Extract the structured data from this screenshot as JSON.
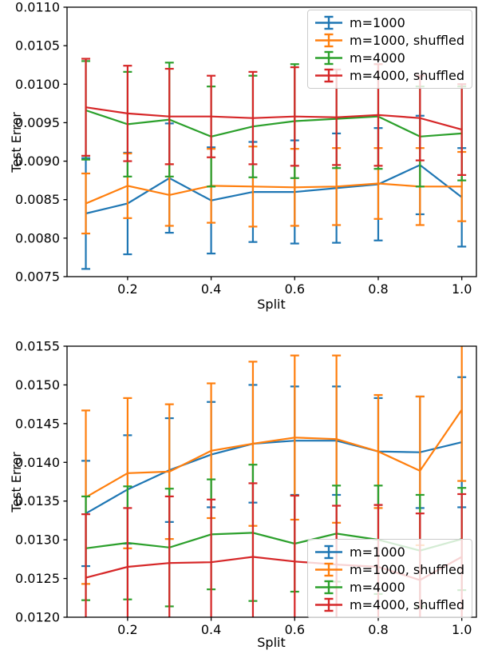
{
  "page": {
    "background": "#ffffff"
  },
  "colors": {
    "blue": "#1f77b4",
    "orange": "#ff7f0e",
    "green": "#2ca02c",
    "red": "#d62728",
    "axis": "#000000"
  },
  "chart_data": [
    {
      "type": "line",
      "title": "",
      "xlabel": "Split",
      "ylabel": "Test Error",
      "x": [
        0.1,
        0.2,
        0.3,
        0.4,
        0.5,
        0.6,
        0.7,
        0.8,
        0.9,
        1.0
      ],
      "xlim": [
        0.055,
        1.035
      ],
      "ylim": [
        0.0075,
        0.011
      ],
      "xticks": {
        "values": [
          0.2,
          0.4,
          0.6,
          0.8,
          1.0
        ],
        "labels": [
          "0.2",
          "0.4",
          "0.6",
          "0.8",
          "1.0"
        ]
      },
      "yticks": {
        "values": [
          0.0075,
          0.008,
          0.0085,
          0.009,
          0.0095,
          0.01,
          0.0105,
          0.011
        ],
        "labels": [
          "0.0075",
          "0.0080",
          "0.0085",
          "0.0090",
          "0.0095",
          "0.0100",
          "0.0105",
          "0.0110"
        ]
      },
      "grid": false,
      "legend_position": "upper right",
      "series": [
        {
          "name": "m=1000",
          "color": "#1f77b4",
          "values": [
            0.00832,
            0.00845,
            0.00878,
            0.00849,
            0.0086,
            0.0086,
            0.00865,
            0.0087,
            0.00895,
            0.00853
          ],
          "errors": [
            0.00072,
            0.00066,
            0.00071,
            0.00069,
            0.00065,
            0.00067,
            0.00071,
            0.00073,
            0.00064,
            0.00064
          ]
        },
        {
          "name": "m=1000, shuffled",
          "color": "#ff7f0e",
          "values": [
            0.00845,
            0.00868,
            0.00856,
            0.00868,
            0.00867,
            0.00866,
            0.00867,
            0.00871,
            0.00867,
            0.00867
          ],
          "errors": [
            0.00039,
            0.00042,
            0.0004,
            0.00048,
            0.00052,
            0.0005,
            0.0005,
            0.00046,
            0.0005,
            0.00045
          ]
        },
        {
          "name": "m=4000",
          "color": "#2ca02c",
          "values": [
            0.00966,
            0.00948,
            0.00954,
            0.00932,
            0.00945,
            0.00952,
            0.00955,
            0.00958,
            0.00932,
            0.00936
          ],
          "errors": [
            0.00064,
            0.00068,
            0.00074,
            0.00065,
            0.00066,
            0.00074,
            0.00064,
            0.00068,
            0.00065,
            0.00061
          ]
        },
        {
          "name": "m=4000, shuffled",
          "color": "#d62728",
          "values": [
            0.0097,
            0.00962,
            0.00958,
            0.00958,
            0.00956,
            0.00958,
            0.00957,
            0.0096,
            0.00956,
            0.00941
          ],
          "errors": [
            0.00063,
            0.00062,
            0.00062,
            0.00053,
            0.0006,
            0.00064,
            0.00062,
            0.00066,
            0.00055,
            0.00059
          ]
        }
      ]
    },
    {
      "type": "line",
      "title": "",
      "xlabel": "Split",
      "ylabel": "Test Error",
      "x": [
        0.1,
        0.2,
        0.3,
        0.4,
        0.5,
        0.6,
        0.7,
        0.8,
        0.9,
        1.0
      ],
      "xlim": [
        0.055,
        1.035
      ],
      "ylim": [
        0.012,
        0.0155
      ],
      "xticks": {
        "values": [
          0.2,
          0.4,
          0.6,
          0.8,
          1.0
        ],
        "labels": [
          "0.2",
          "0.4",
          "0.6",
          "0.8",
          "1.0"
        ]
      },
      "yticks": {
        "values": [
          0.012,
          0.0125,
          0.013,
          0.0135,
          0.014,
          0.0145,
          0.015,
          0.0155
        ],
        "labels": [
          "0.0120",
          "0.0125",
          "0.0130",
          "0.0135",
          "0.0140",
          "0.0145",
          "0.0150",
          "0.0155"
        ]
      },
      "grid": false,
      "legend_position": "lower right",
      "series": [
        {
          "name": "m=1000",
          "color": "#1f77b4",
          "values": [
            0.01334,
            0.01365,
            0.0139,
            0.0141,
            0.01424,
            0.01428,
            0.01428,
            0.01414,
            0.01413,
            0.01426
          ],
          "errors": [
            0.00068,
            0.0007,
            0.00067,
            0.00068,
            0.00076,
            0.0007,
            0.0007,
            0.00069,
            0.00072,
            0.00084
          ]
        },
        {
          "name": "m=1000, shuffled",
          "color": "#ff7f0e",
          "values": [
            0.01355,
            0.01386,
            0.01388,
            0.01415,
            0.01424,
            0.01432,
            0.0143,
            0.01414,
            0.01389,
            0.01468
          ],
          "errors": [
            0.00112,
            0.00097,
            0.00087,
            0.00087,
            0.00106,
            0.00106,
            0.00108,
            0.00073,
            0.00096,
            0.00092
          ]
        },
        {
          "name": "m=4000",
          "color": "#2ca02c",
          "values": [
            0.01289,
            0.01296,
            0.0129,
            0.01307,
            0.01309,
            0.01295,
            0.01308,
            0.013,
            0.01286,
            0.01301
          ],
          "errors": [
            0.00067,
            0.00073,
            0.00076,
            0.00071,
            0.00088,
            0.00062,
            0.00062,
            0.0007,
            0.00072,
            0.00066
          ]
        },
        {
          "name": "m=4000, shuffled",
          "color": "#d62728",
          "values": [
            0.01251,
            0.01265,
            0.0127,
            0.01271,
            0.01278,
            0.01272,
            0.01268,
            0.01265,
            0.01248,
            0.01278
          ],
          "errors": [
            0.00082,
            0.00076,
            0.00086,
            0.00081,
            0.00095,
            0.00085,
            0.00076,
            0.0008,
            0.00086,
            0.00081
          ]
        }
      ]
    }
  ]
}
